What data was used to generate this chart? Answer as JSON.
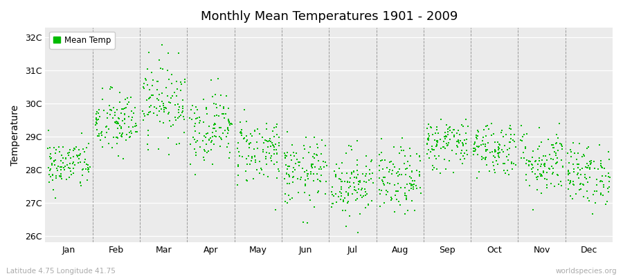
{
  "title": "Monthly Mean Temperatures 1901 - 2009",
  "ylabel": "Temperature",
  "xlabel_labels": [
    "Jan",
    "Feb",
    "Mar",
    "Apr",
    "May",
    "Jun",
    "Jul",
    "Aug",
    "Sep",
    "Oct",
    "Nov",
    "Dec"
  ],
  "ytick_labels": [
    "26C",
    "27C",
    "28C",
    "29C",
    "30C",
    "31C",
    "32C"
  ],
  "ytick_values": [
    26,
    27,
    28,
    29,
    30,
    31,
    32
  ],
  "ylim": [
    25.8,
    32.3
  ],
  "background_color": "#ffffff",
  "plot_bg_color": "#ebebeb",
  "dot_color": "#00bb00",
  "legend_label": "Mean Temp",
  "footer_left": "Latitude 4.75 Longitude 41.75",
  "footer_right": "worldspecies.org",
  "num_years": 109,
  "monthly_means": [
    28.15,
    29.4,
    30.1,
    29.3,
    28.6,
    27.9,
    27.6,
    27.65,
    28.8,
    28.65,
    28.25,
    27.85
  ],
  "monthly_stds": [
    0.38,
    0.5,
    0.6,
    0.55,
    0.52,
    0.52,
    0.52,
    0.5,
    0.4,
    0.42,
    0.52,
    0.46
  ],
  "seed": 42
}
